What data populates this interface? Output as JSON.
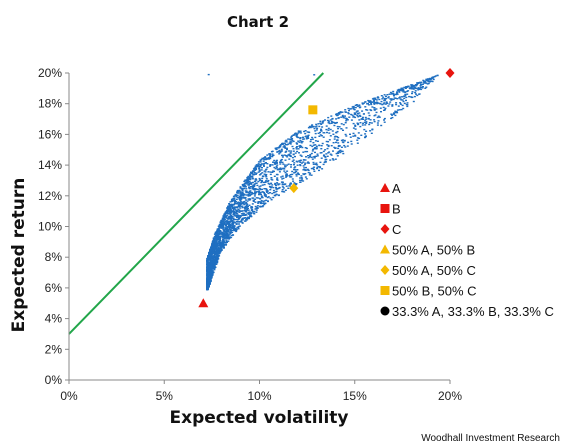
{
  "chart_data": {
    "type": "scatter",
    "title": "Chart 2",
    "xlabel": "Expected volatility",
    "ylabel": "Expected return",
    "source": "Woodhall Investment Research",
    "xlim": [
      0,
      0.2
    ],
    "ylim": [
      0,
      0.2
    ],
    "x_ticks": [
      "0%",
      "5%",
      "10%",
      "15%",
      "20%"
    ],
    "y_ticks": [
      "0%",
      "2%",
      "4%",
      "6%",
      "8%",
      "10%",
      "12%",
      "14%",
      "16%",
      "18%",
      "20%"
    ],
    "colors": {
      "cloud": "#1f6fc1",
      "line": "#22a64a",
      "red": "#e8140e",
      "gold": "#f3b800",
      "black": "#000000"
    },
    "portfolio_cloud": {
      "description_level": "random portfolios",
      "frontier": [
        [
          0.0723,
          0.0784
        ],
        [
          0.0714,
          0.0658
        ],
        [
          0.0722,
          0.056
        ],
        [
          0.0765,
          0.095
        ],
        [
          0.085,
          0.1175
        ],
        [
          0.1,
          0.143
        ],
        [
          0.12,
          0.162
        ],
        [
          0.15,
          0.179
        ],
        [
          0.18,
          0.1925
        ],
        [
          0.1945,
          0.199
        ]
      ],
      "lower_bound": [
        [
          0.0722,
          0.056
        ],
        [
          0.08,
          0.0835
        ],
        [
          0.09,
          0.1
        ],
        [
          0.105,
          0.116
        ],
        [
          0.12,
          0.127
        ],
        [
          0.135,
          0.139
        ],
        [
          0.15,
          0.152
        ],
        [
          0.165,
          0.166
        ],
        [
          0.18,
          0.18
        ],
        [
          0.1945,
          0.199
        ]
      ]
    },
    "capital_market_line": {
      "x": [
        0,
        0.1335
      ],
      "y": [
        0.03,
        0.2
      ]
    },
    "series": [
      {
        "name": "A",
        "marker": "triangle",
        "color": "#e8140e",
        "x": [
          0.0705
        ],
        "y": [
          0.05
        ]
      },
      {
        "name": "B",
        "marker": "square",
        "color": "#e8140e",
        "x": [],
        "y": []
      },
      {
        "name": "C",
        "marker": "diamond",
        "color": "#e8140e",
        "x": [
          0.2
        ],
        "y": [
          0.2
        ]
      },
      {
        "name": "50% A, 50% B",
        "marker": "triangle",
        "color": "#f3b800",
        "x": [],
        "y": []
      },
      {
        "name": "50% A, 50% C",
        "marker": "diamond",
        "color": "#f3b800",
        "x": [
          0.118
        ],
        "y": [
          0.125
        ]
      },
      {
        "name": "50% B, 50% C",
        "marker": "square",
        "color": "#f3b800",
        "x": [
          0.128
        ],
        "y": [
          0.176
        ]
      },
      {
        "name": "33.3% A, 33.3% B, 33.3% C",
        "marker": "circle",
        "color": "#000000",
        "x": [],
        "y": []
      }
    ],
    "legend_position": "right"
  }
}
